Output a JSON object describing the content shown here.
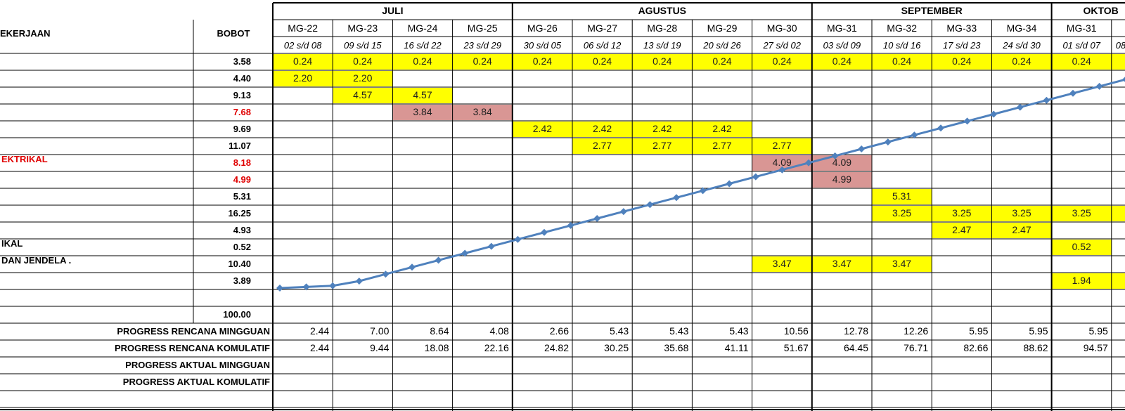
{
  "months": [
    {
      "name": "JULI",
      "span": [
        0,
        3
      ]
    },
    {
      "name": "AGUSTUS",
      "span": [
        4,
        8
      ]
    },
    {
      "name": "SEPTEMBER",
      "span": [
        9,
        12
      ]
    },
    {
      "name": "OKTOB",
      "span": [
        13,
        14
      ]
    }
  ],
  "weeks": [
    "MG-22",
    "MG-23",
    "MG-24",
    "MG-25",
    "MG-26",
    "MG-27",
    "MG-28",
    "MG-29",
    "MG-30",
    "MG-31",
    "MG-32",
    "MG-33",
    "MG-34",
    "MG-31",
    ""
  ],
  "dates": [
    "02 s/d 08",
    "09 s/d 15",
    "16 s/d 22",
    "23 s/d 29",
    "30 s/d 05",
    "06 s/d 12",
    "13 s/d 19",
    "20 s/d 26",
    "27 s/d 02",
    "03 s/d 09",
    "10 s/d 16",
    "17 s/d 23",
    "24 s/d 30",
    "01 s/d 07",
    "08"
  ],
  "header": {
    "pekerjaan": "EKERJAAN",
    "bobot": "BOBOT"
  },
  "rows": [
    {
      "label": "",
      "label_red": false,
      "bobot": "3.58",
      "bobot_red": false,
      "cells": [
        {
          "c": 0,
          "v": "0.24",
          "color": "yellow"
        },
        {
          "c": 1,
          "v": "0.24",
          "color": "yellow"
        },
        {
          "c": 2,
          "v": "0.24",
          "color": "yellow"
        },
        {
          "c": 3,
          "v": "0.24",
          "color": "yellow"
        },
        {
          "c": 4,
          "v": "0.24",
          "color": "yellow"
        },
        {
          "c": 5,
          "v": "0.24",
          "color": "yellow"
        },
        {
          "c": 6,
          "v": "0.24",
          "color": "yellow"
        },
        {
          "c": 7,
          "v": "0.24",
          "color": "yellow"
        },
        {
          "c": 8,
          "v": "0.24",
          "color": "yellow"
        },
        {
          "c": 9,
          "v": "0.24",
          "color": "yellow"
        },
        {
          "c": 10,
          "v": "0.24",
          "color": "yellow"
        },
        {
          "c": 11,
          "v": "0.24",
          "color": "yellow"
        },
        {
          "c": 12,
          "v": "0.24",
          "color": "yellow"
        },
        {
          "c": 13,
          "v": "0.24",
          "color": "yellow"
        },
        {
          "c": 14,
          "v": "",
          "color": "yellow"
        }
      ]
    },
    {
      "label": "",
      "label_red": false,
      "bobot": "4.40",
      "bobot_red": false,
      "cells": [
        {
          "c": 0,
          "v": "2.20",
          "color": "yellow"
        },
        {
          "c": 1,
          "v": "2.20",
          "color": "yellow"
        }
      ]
    },
    {
      "label": "",
      "label_red": false,
      "bobot": "9.13",
      "bobot_red": false,
      "cells": [
        {
          "c": 1,
          "v": "4.57",
          "color": "yellow"
        },
        {
          "c": 2,
          "v": "4.57",
          "color": "yellow"
        }
      ]
    },
    {
      "label": "",
      "label_red": false,
      "bobot": "7.68",
      "bobot_red": true,
      "cells": [
        {
          "c": 2,
          "v": "3.84",
          "color": "rose"
        },
        {
          "c": 3,
          "v": "3.84",
          "color": "rose"
        }
      ]
    },
    {
      "label": "",
      "label_red": false,
      "bobot": "9.69",
      "bobot_red": false,
      "cells": [
        {
          "c": 4,
          "v": "2.42",
          "color": "yellow"
        },
        {
          "c": 5,
          "v": "2.42",
          "color": "yellow"
        },
        {
          "c": 6,
          "v": "2.42",
          "color": "yellow"
        },
        {
          "c": 7,
          "v": "2.42",
          "color": "yellow"
        }
      ]
    },
    {
      "label": "",
      "label_red": false,
      "bobot": "11.07",
      "bobot_red": false,
      "cells": [
        {
          "c": 5,
          "v": "2.77",
          "color": "yellow"
        },
        {
          "c": 6,
          "v": "2.77",
          "color": "yellow"
        },
        {
          "c": 7,
          "v": "2.77",
          "color": "yellow"
        },
        {
          "c": 8,
          "v": "2.77",
          "color": "yellow"
        }
      ]
    },
    {
      "label": "EKTRIKAL",
      "label_red": true,
      "bobot": "8.18",
      "bobot_red": true,
      "cells": [
        {
          "c": 8,
          "v": "4.09",
          "color": "rose"
        },
        {
          "c": 9,
          "v": "4.09",
          "color": "rose"
        }
      ]
    },
    {
      "label": "",
      "label_red": false,
      "bobot": "4.99",
      "bobot_red": true,
      "cells": [
        {
          "c": 9,
          "v": "4.99",
          "color": "rose"
        }
      ]
    },
    {
      "label": "",
      "label_red": false,
      "bobot": "5.31",
      "bobot_red": false,
      "cells": [
        {
          "c": 10,
          "v": "5.31",
          "color": "yellow"
        }
      ]
    },
    {
      "label": "",
      "label_red": false,
      "bobot": "16.25",
      "bobot_red": false,
      "cells": [
        {
          "c": 10,
          "v": "3.25",
          "color": "yellow"
        },
        {
          "c": 11,
          "v": "3.25",
          "color": "yellow"
        },
        {
          "c": 12,
          "v": "3.25",
          "color": "yellow"
        },
        {
          "c": 13,
          "v": "3.25",
          "color": "yellow"
        },
        {
          "c": 14,
          "v": "",
          "color": "yellow"
        }
      ]
    },
    {
      "label": "",
      "label_red": false,
      "bobot": "4.93",
      "bobot_red": false,
      "cells": [
        {
          "c": 11,
          "v": "2.47",
          "color": "yellow"
        },
        {
          "c": 12,
          "v": "2.47",
          "color": "yellow"
        }
      ]
    },
    {
      "label": "IKAL",
      "label_red": false,
      "bobot": "0.52",
      "bobot_red": false,
      "cells": [
        {
          "c": 13,
          "v": "0.52",
          "color": "yellow"
        }
      ]
    },
    {
      "label": "DAN JENDELA .",
      "label_red": false,
      "bobot": "10.40",
      "bobot_red": false,
      "cells": [
        {
          "c": 8,
          "v": "3.47",
          "color": "yellow"
        },
        {
          "c": 9,
          "v": "3.47",
          "color": "yellow"
        },
        {
          "c": 10,
          "v": "3.47",
          "color": "yellow"
        }
      ]
    },
    {
      "label": "",
      "label_red": false,
      "bobot": "3.89",
      "bobot_red": false,
      "cells": [
        {
          "c": 13,
          "v": "1.94",
          "color": "yellow"
        },
        {
          "c": 14,
          "v": "",
          "color": "yellow"
        }
      ]
    },
    {
      "label": "",
      "label_red": false,
      "bobot": "",
      "bobot_red": false,
      "cells": []
    },
    {
      "label": "",
      "label_red": false,
      "bobot": "100.00",
      "bobot_red": false,
      "cells": []
    }
  ],
  "progress": [
    {
      "label": "PROGRESS RENCANA MINGGUAN",
      "values": [
        "2.44",
        "7.00",
        "8.64",
        "4.08",
        "2.66",
        "5.43",
        "5.43",
        "5.43",
        "10.56",
        "12.78",
        "12.26",
        "5.95",
        "5.95",
        "5.95",
        ""
      ]
    },
    {
      "label": "PROGRESS RENCANA KOMULATIF",
      "values": [
        "2.44",
        "9.44",
        "18.08",
        "22.16",
        "24.82",
        "30.25",
        "35.68",
        "41.11",
        "51.67",
        "64.45",
        "76.71",
        "82.66",
        "88.62",
        "94.57",
        ""
      ]
    },
    {
      "label": "PROGRESS AKTUAL MINGGUAN",
      "values": []
    },
    {
      "label": "PROGRESS AKTUAL KOMULATIF",
      "values": []
    }
  ],
  "colors": {
    "yellow": "#ffff00",
    "rose": "#d99694",
    "curve": "#4f81bd",
    "grid": "#000000",
    "red": "#e00000"
  },
  "curve_values": [
    0,
    0.5,
    1,
    3,
    6,
    9,
    12,
    15,
    18,
    21,
    24,
    27,
    30,
    33,
    36,
    39,
    42,
    45,
    48,
    51,
    54,
    57,
    60,
    63,
    66,
    69,
    72,
    75,
    78,
    81,
    84,
    87,
    90,
    93,
    96,
    99,
    101,
    103
  ]
}
